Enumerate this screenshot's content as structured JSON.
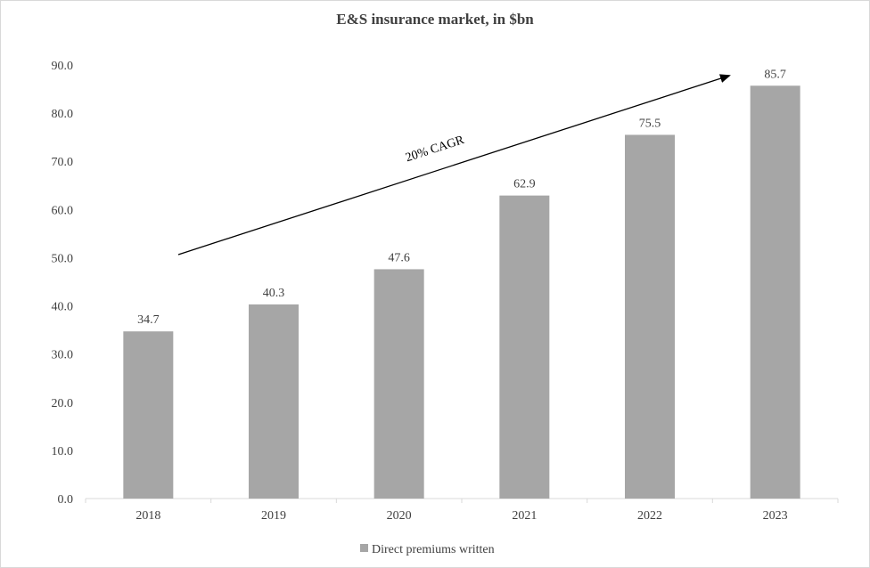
{
  "chart_data": {
    "type": "bar",
    "title": "E&S insurance market, in $bn",
    "categories": [
      "2018",
      "2019",
      "2020",
      "2021",
      "2022",
      "2023"
    ],
    "series": [
      {
        "name": "Direct premiums written",
        "values": [
          34.7,
          40.3,
          47.6,
          62.9,
          75.5,
          85.7
        ]
      }
    ],
    "data_labels": [
      "34.7",
      "40.3",
      "47.6",
      "62.9",
      "75.5",
      "85.7"
    ],
    "ylim": [
      0,
      90
    ],
    "y_ticks": [
      "0.0",
      "10.0",
      "20.0",
      "30.0",
      "40.0",
      "50.0",
      "60.0",
      "70.0",
      "80.0",
      "90.0"
    ],
    "grid": false,
    "legend_position": "bottom",
    "annotation": "20% CAGR",
    "colors": {
      "bar": "#a6a6a6",
      "text": "#404040",
      "axis": "#d9d9d9",
      "arrow": "#000000"
    }
  }
}
